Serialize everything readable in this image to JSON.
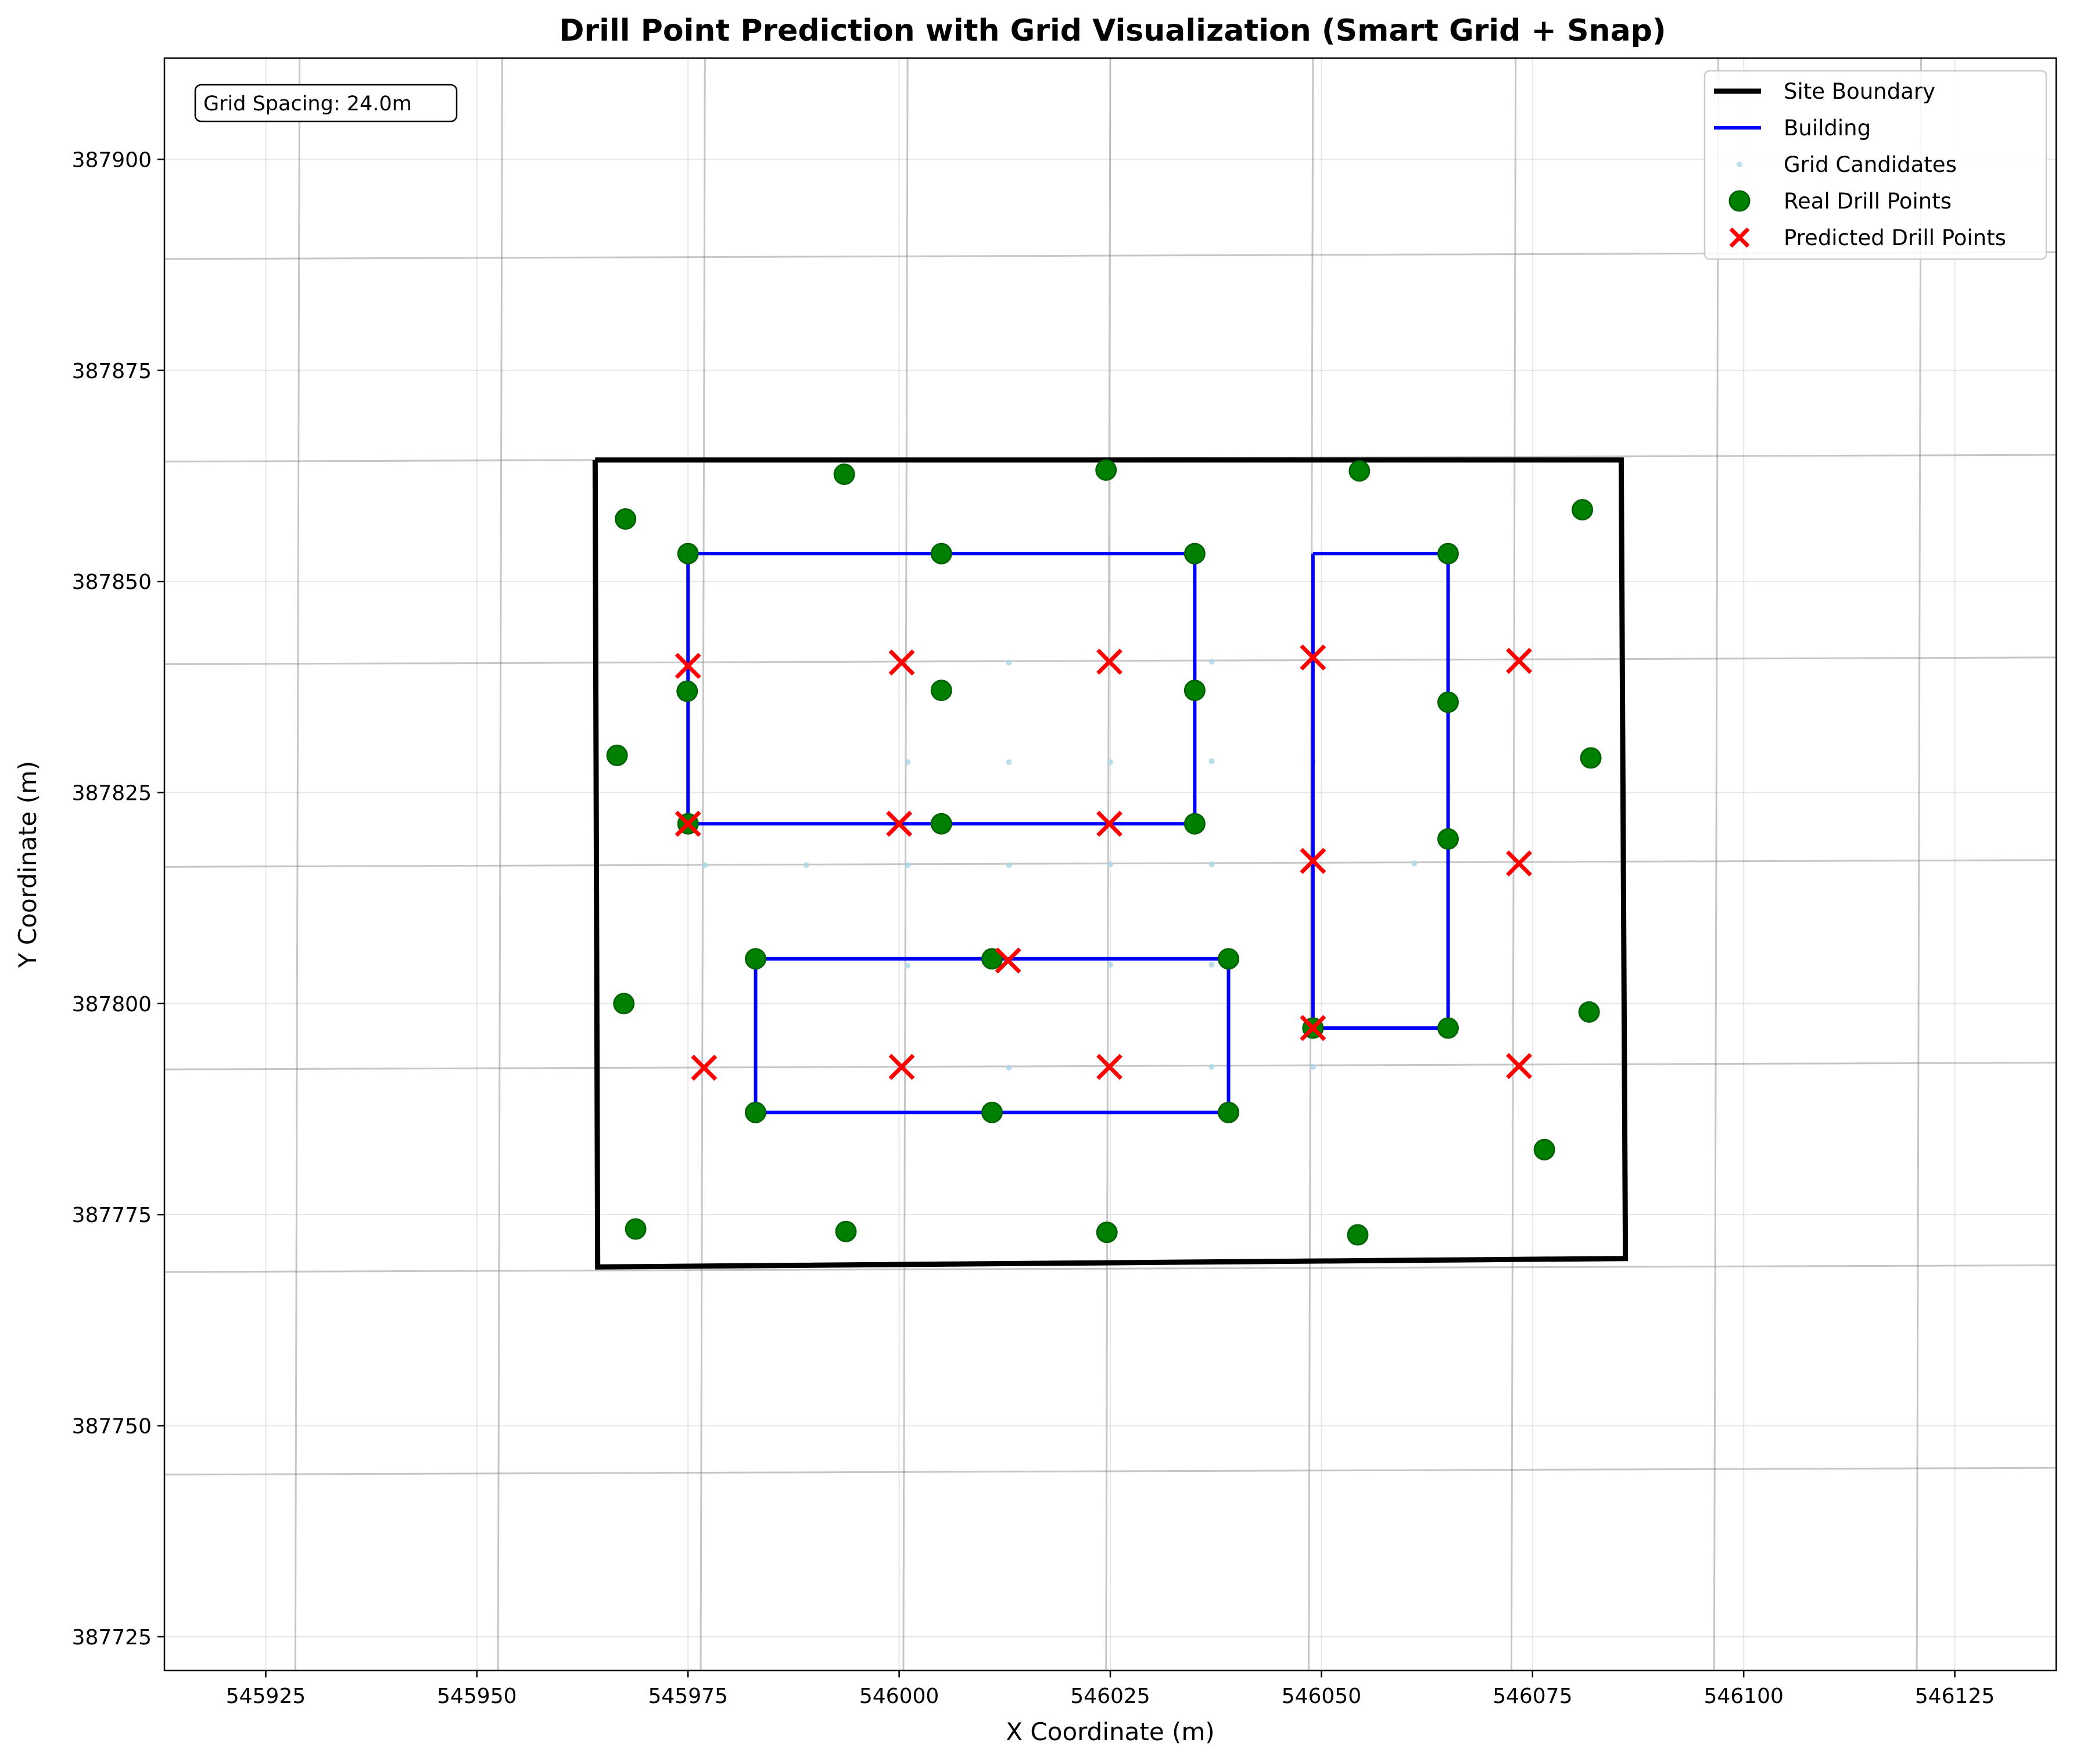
{
  "chart_data": {
    "type": "scatter",
    "title": "Drill Point Prediction with Grid Visualization (Smart Grid + Snap)",
    "xlabel": "X Coordinate (m)",
    "ylabel": "Y Coordinate (m)",
    "xlim": [
      545913,
      546137
    ],
    "ylim": [
      387721,
      387912
    ],
    "x_ticks": [
      545925,
      545950,
      545975,
      546000,
      546025,
      546050,
      546075,
      546100,
      546125
    ],
    "y_ticks": [
      387725,
      387750,
      387775,
      387800,
      387825,
      387850,
      387875,
      387900
    ],
    "grid": true,
    "legend_position": "top-right",
    "annotation": "Grid Spacing: 24.0m",
    "colors": {
      "site_boundary": "#000000",
      "building": "#0000ff",
      "grid_candidates": "#add8e6",
      "real_drill_points": "#008000",
      "predicted_drill_points": "#ff0000",
      "rotated_grid": "#808080"
    },
    "legend": [
      {
        "key": "site_boundary",
        "label": "Site Boundary",
        "marker": "line"
      },
      {
        "key": "building",
        "label": "Building",
        "marker": "line"
      },
      {
        "key": "grid_candidates",
        "label": "Grid Candidates",
        "marker": "dot"
      },
      {
        "key": "real_drill_points",
        "label": "Real Drill Points",
        "marker": "circle"
      },
      {
        "key": "predicted_drill_points",
        "label": "Predicted Drill Points",
        "marker": "x"
      }
    ],
    "site_boundary": [
      [
        545964.0,
        387864.4
      ],
      [
        546085.5,
        387864.4
      ],
      [
        546086.0,
        387769.8
      ],
      [
        545964.3,
        387768.8
      ],
      [
        545964.0,
        387864.4
      ]
    ],
    "buildings": [
      [
        [
          545975,
          387853.3
        ],
        [
          546035,
          387853.3
        ],
        [
          546035,
          387821.3
        ],
        [
          545975,
          387821.3
        ],
        [
          545975,
          387853.3
        ]
      ],
      [
        [
          546049,
          387853.3
        ],
        [
          546065,
          387853.3
        ],
        [
          546065,
          387797.1
        ],
        [
          546049,
          387797.1
        ],
        [
          546049,
          387853.3
        ]
      ],
      [
        [
          545983,
          387805.3
        ],
        [
          546039,
          387805.3
        ],
        [
          546039,
          387787.1
        ],
        [
          545983,
          387787.1
        ],
        [
          545983,
          387805.3
        ]
      ]
    ],
    "rotated_grid_x_lines": [
      [
        [
          545929,
          387912
        ],
        [
          545928.5,
          387721
        ]
      ],
      [
        [
          545953,
          387912
        ],
        [
          545952.5,
          387721
        ]
      ],
      [
        [
          545977,
          387912
        ],
        [
          545976.5,
          387721
        ]
      ],
      [
        [
          546001,
          387912
        ],
        [
          546000.5,
          387721
        ]
      ],
      [
        [
          546025,
          387912
        ],
        [
          546024.5,
          387721
        ]
      ],
      [
        [
          546049,
          387912
        ],
        [
          546048.5,
          387721
        ]
      ],
      [
        [
          546073,
          387912
        ],
        [
          546072.5,
          387721
        ]
      ],
      [
        [
          546097,
          387912
        ],
        [
          546096.5,
          387721
        ]
      ],
      [
        [
          546121,
          387912
        ],
        [
          546120.5,
          387721
        ]
      ]
    ],
    "rotated_grid_y_lines": [
      [
        [
          545913,
          387888.2
        ],
        [
          546137,
          387889.0
        ]
      ],
      [
        [
          545913,
          387864.2
        ],
        [
          546137,
          387865.0
        ]
      ],
      [
        [
          545913,
          387840.2
        ],
        [
          546137,
          387841.0
        ]
      ],
      [
        [
          545913,
          387816.2
        ],
        [
          546137,
          387817.0
        ]
      ],
      [
        [
          545913,
          387792.2
        ],
        [
          546137,
          387793.0
        ]
      ],
      [
        [
          545913,
          387768.2
        ],
        [
          546137,
          387769.0
        ]
      ],
      [
        [
          545913,
          387744.2
        ],
        [
          546137,
          387745.0
        ]
      ]
    ],
    "grid_candidates": [
      [
        546013,
        387840.4
      ],
      [
        546037,
        387840.5
      ],
      [
        546001,
        387828.6
      ],
      [
        546013,
        387828.6
      ],
      [
        546025,
        387828.6
      ],
      [
        546037,
        387828.7
      ],
      [
        546049,
        387828.7
      ],
      [
        545977,
        387816.4
      ],
      [
        545989,
        387816.4
      ],
      [
        546001,
        387816.4
      ],
      [
        546013,
        387816.4
      ],
      [
        546025,
        387816.5
      ],
      [
        546037,
        387816.5
      ],
      [
        546061,
        387816.6
      ],
      [
        546001,
        387804.5
      ],
      [
        546025,
        387804.6
      ],
      [
        546037,
        387804.6
      ],
      [
        546013,
        387792.4
      ],
      [
        546037,
        387792.5
      ],
      [
        546049,
        387792.5
      ]
    ],
    "real_drill_points": [
      [
        545967.6,
        387857.4
      ],
      [
        545993.5,
        387862.7
      ],
      [
        546024.5,
        387863.2
      ],
      [
        546054.5,
        387863.1
      ],
      [
        546080.9,
        387858.5
      ],
      [
        545975,
        387853.3
      ],
      [
        546005,
        387853.3
      ],
      [
        546035,
        387853.3
      ],
      [
        546065,
        387853.3
      ],
      [
        545974.9,
        387837.0
      ],
      [
        546005,
        387837.1
      ],
      [
        546035,
        387837.1
      ],
      [
        546065,
        387835.7
      ],
      [
        545966.6,
        387829.4
      ],
      [
        546081.9,
        387829.1
      ],
      [
        545975,
        387821.3
      ],
      [
        546005,
        387821.3
      ],
      [
        546035,
        387821.3
      ],
      [
        546065,
        387819.5
      ],
      [
        545983,
        387805.3
      ],
      [
        546011,
        387805.3
      ],
      [
        546039,
        387805.3
      ],
      [
        545967.4,
        387800.0
      ],
      [
        546081.7,
        387799.0
      ],
      [
        546049,
        387797.1
      ],
      [
        546065,
        387797.1
      ],
      [
        545983,
        387787.1
      ],
      [
        546011,
        387787.1
      ],
      [
        546039,
        387787.1
      ],
      [
        546076.4,
        387782.7
      ],
      [
        545968.8,
        387773.3
      ],
      [
        545993.7,
        387773.0
      ],
      [
        546024.6,
        387772.9
      ],
      [
        546054.3,
        387772.6
      ]
    ],
    "predicted_drill_points": [
      [
        545975,
        387840.0
      ],
      [
        546000.3,
        387840.4
      ],
      [
        546024.9,
        387840.5
      ],
      [
        546049,
        387841.0
      ],
      [
        546073.4,
        387840.6
      ],
      [
        545975,
        387821.3
      ],
      [
        546000,
        387821.3
      ],
      [
        546024.9,
        387821.3
      ],
      [
        546049,
        387816.9
      ],
      [
        546073.4,
        387816.6
      ],
      [
        546012.9,
        387805.1
      ],
      [
        546049,
        387797.1
      ],
      [
        545976.9,
        387792.4
      ],
      [
        546000.3,
        387792.5
      ],
      [
        546024.9,
        387792.5
      ],
      [
        546073.4,
        387792.6
      ]
    ]
  }
}
